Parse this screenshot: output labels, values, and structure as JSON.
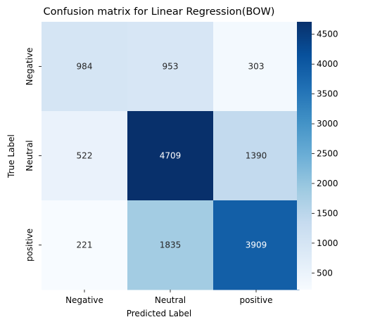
{
  "chart_data": {
    "type": "heatmap",
    "title": "Confusion matrix for Linear Regression(BOW)",
    "xlabel": "Predicted Label",
    "ylabel": "True Label",
    "x_categories": [
      "Negative",
      "Neutral",
      "positive"
    ],
    "y_categories": [
      "Negative",
      "Neutral",
      "positive"
    ],
    "values": [
      [
        984,
        953,
        303
      ],
      [
        522,
        4709,
        1390
      ],
      [
        221,
        1835,
        3909
      ]
    ],
    "colorbar": {
      "colormap": "Blues",
      "range": [
        221,
        4709
      ],
      "ticks": [
        500,
        1000,
        1500,
        2000,
        2500,
        3000,
        3500,
        4000,
        4500
      ]
    }
  }
}
